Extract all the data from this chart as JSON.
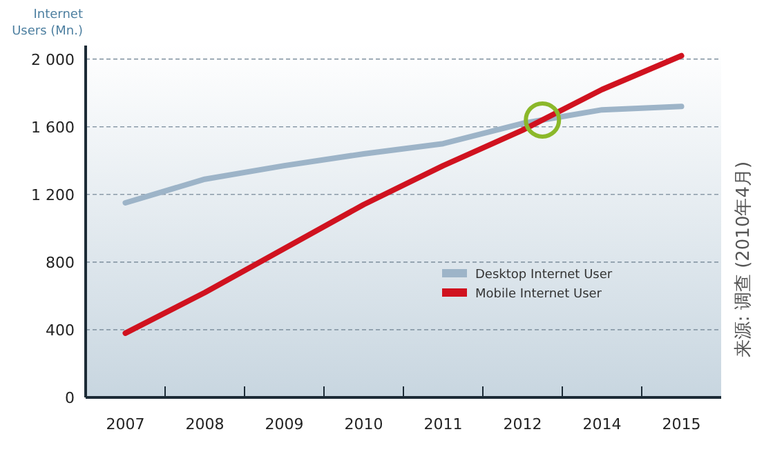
{
  "chart_data": {
    "type": "line",
    "ylabel": "Internet Users (Mn.)",
    "categories": [
      "2007",
      "2008",
      "2009",
      "2010",
      "2011",
      "2012",
      "2014",
      "2015"
    ],
    "series": [
      {
        "name": "Desktop Internet User",
        "color": "#9db4c8",
        "values": [
          1150,
          1290,
          1370,
          1440,
          1500,
          1620,
          1700,
          1720
        ]
      },
      {
        "name": "Mobile Internet User",
        "color": "#d0121f",
        "values": [
          380,
          620,
          880,
          1140,
          1370,
          1580,
          1820,
          2020
        ]
      }
    ],
    "ylim": [
      0,
      2080
    ],
    "yticks": [
      0,
      400,
      800,
      {
        "value": 1200,
        "label": "1 200"
      },
      {
        "value": 1600,
        "label": "1 600"
      },
      {
        "value": 2000,
        "label": "2 000"
      }
    ],
    "grid": "y",
    "legend": "right",
    "line_style": "solid",
    "marker": "none",
    "annotations": [
      "来源: 调查 (2010年4月)"
    ]
  }
}
